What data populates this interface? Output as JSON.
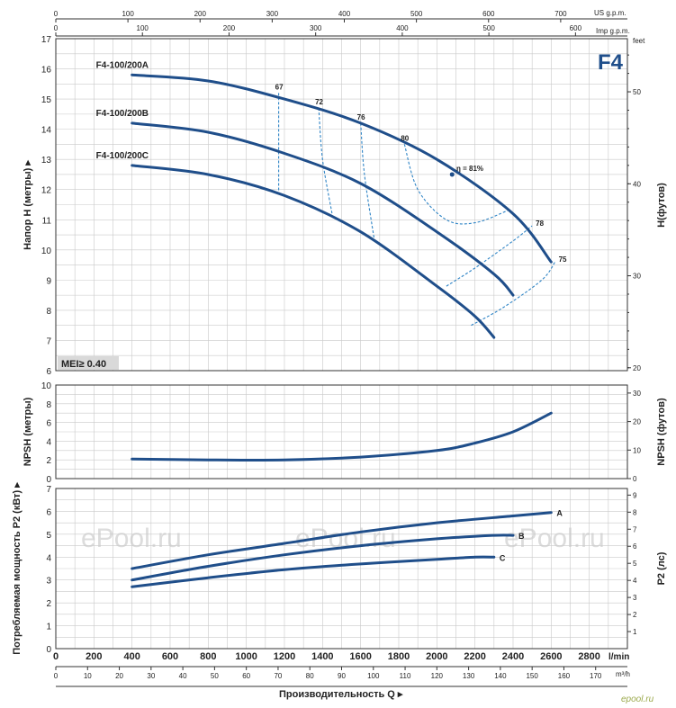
{
  "chart_data": {
    "type": "line",
    "series_label": "F4",
    "mei_label": "MEI≥ 0.40",
    "top_axes": {
      "us_gpm": {
        "unit": "US g.p.m.",
        "ticks": [
          0,
          100,
          200,
          300,
          400,
          500,
          600,
          700
        ]
      },
      "imp_gpm": {
        "unit": "Imp g.p.m.",
        "ticks": [
          0,
          100,
          200,
          300,
          400,
          500,
          600
        ]
      }
    },
    "bottom_axes": {
      "lmin": {
        "unit": "l/min",
        "ticks": [
          0,
          200,
          400,
          600,
          800,
          1000,
          1200,
          1400,
          1600,
          1800,
          2000,
          2200,
          2400,
          2600,
          2800
        ]
      },
      "m3h": {
        "unit": "m³/h",
        "ticks": [
          0,
          10,
          20,
          30,
          40,
          50,
          60,
          70,
          80,
          90,
          100,
          110,
          120,
          130,
          140,
          150,
          160,
          170
        ]
      },
      "xlabel": "Производительность Q ▸",
      "xlim": [
        0,
        3000
      ]
    },
    "head_panel": {
      "ylabel": "Напор H (метры) ▸",
      "ylabel_right": "H(футов)",
      "right_unit": "feet",
      "ylim": [
        6,
        17
      ],
      "yticks": [
        6,
        7,
        8,
        9,
        10,
        11,
        12,
        13,
        14,
        15,
        16,
        17
      ],
      "right_ticks": [
        20,
        30,
        40,
        50
      ],
      "curves": [
        {
          "name": "F4-100/200A",
          "x": [
            400,
            800,
            1200,
            1600,
            2000,
            2400,
            2600
          ],
          "y": [
            15.8,
            15.6,
            15.0,
            14.2,
            13.0,
            11.2,
            9.6
          ]
        },
        {
          "name": "F4-100/200B",
          "x": [
            400,
            800,
            1200,
            1600,
            2000,
            2300,
            2400
          ],
          "y": [
            14.2,
            13.9,
            13.2,
            12.2,
            10.6,
            9.2,
            8.5
          ]
        },
        {
          "name": "F4-100/200C",
          "x": [
            400,
            800,
            1200,
            1600,
            2000,
            2200,
            2300
          ],
          "y": [
            12.8,
            12.5,
            11.8,
            10.6,
            8.8,
            7.8,
            7.1
          ]
        }
      ],
      "efficiency_lines": [
        {
          "label": "67",
          "x": [
            1170,
            1170
          ],
          "y": [
            15.2,
            11.9
          ]
        },
        {
          "label": "72",
          "x": [
            1380,
            1400,
            1450
          ],
          "y": [
            14.7,
            13.0,
            11.2
          ]
        },
        {
          "label": "76",
          "x": [
            1600,
            1620,
            1670
          ],
          "y": [
            14.2,
            12.5,
            10.4
          ]
        },
        {
          "label": "80",
          "x": [
            1830,
            1900,
            2050,
            2200,
            2370
          ],
          "y": [
            13.5,
            12.0,
            11.0,
            10.9,
            11.3
          ]
        },
        {
          "label": "78",
          "x": [
            2050,
            2200,
            2400,
            2500
          ],
          "y": [
            8.8,
            9.4,
            10.3,
            10.8
          ]
        },
        {
          "label": "75",
          "x": [
            2180,
            2350,
            2550,
            2620
          ],
          "y": [
            7.5,
            8.1,
            9.0,
            9.6
          ]
        }
      ],
      "peak_label": "η = 81%",
      "peak_point": {
        "x": 2080,
        "y": 12.5
      }
    },
    "npsh_panel": {
      "ylabel": "NPSH (метры)",
      "ylabel_right": "NPSH (футов)",
      "ylim": [
        0,
        10
      ],
      "yticks": [
        0,
        2,
        4,
        6,
        8,
        10
      ],
      "right_ticks": [
        0,
        10,
        20,
        30
      ],
      "curve": {
        "x": [
          400,
          800,
          1200,
          1600,
          2000,
          2200,
          2400,
          2600
        ],
        "y": [
          2.1,
          2.0,
          2.0,
          2.3,
          3.0,
          3.8,
          5.0,
          7.0
        ]
      }
    },
    "power_panel": {
      "ylabel": "Потребляемая мощность P2 (кВт) ▸",
      "ylabel_right": "P2 (лс)",
      "ylim": [
        0,
        7
      ],
      "yticks": [
        0,
        1,
        2,
        3,
        4,
        5,
        6,
        7
      ],
      "right_ticks": [
        1,
        2,
        3,
        4,
        5,
        6,
        7,
        8,
        9
      ],
      "curves": [
        {
          "name": "A",
          "x": [
            400,
            800,
            1200,
            1600,
            2000,
            2400,
            2600
          ],
          "y": [
            3.5,
            4.1,
            4.6,
            5.1,
            5.5,
            5.8,
            5.95
          ]
        },
        {
          "name": "B",
          "x": [
            400,
            800,
            1200,
            1600,
            2000,
            2300,
            2400
          ],
          "y": [
            3.0,
            3.6,
            4.1,
            4.5,
            4.8,
            4.95,
            4.95
          ]
        },
        {
          "name": "C",
          "x": [
            400,
            800,
            1200,
            1600,
            2000,
            2200,
            2300
          ],
          "y": [
            2.7,
            3.1,
            3.45,
            3.7,
            3.9,
            4.0,
            4.0
          ]
        }
      ]
    },
    "watermarks": [
      "ePool.ru",
      "ePool.ru",
      "ePool.ru",
      "epool.ru"
    ]
  }
}
